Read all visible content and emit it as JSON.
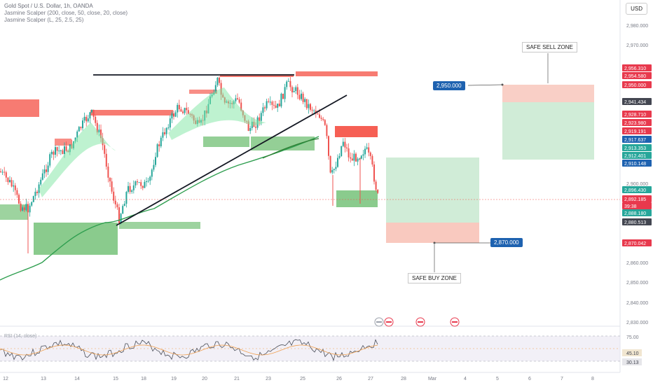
{
  "legend": {
    "title": "Gold Spot / U.S. Dollar, 1h, OANDA",
    "ind1": "Jasmine Scalper (200, close, 50, close, 20, close)",
    "ind2": "Jasmine Scalper (L, 25, 2.5, 25)"
  },
  "currency": "USD",
  "rsi_label": "RSI (14, close)",
  "annotations": {
    "sell_zone": "SAFE SELL ZONE",
    "buy_zone": "SAFE BUY ZONE",
    "sell_price": "2,950.000",
    "buy_price": "2,870.000"
  },
  "colors": {
    "up": "#26a69a",
    "down": "#ef5350",
    "demand": "#4caf50",
    "supply": "#f44336",
    "sma": "#2e9e4f",
    "trend": "#131722",
    "label_blue": "#1e62b0"
  },
  "chart_data": {
    "type": "candlestick",
    "title": "Gold Spot / U.S. Dollar, 1h, OANDA",
    "xlabel": "",
    "ylabel": "",
    "ylim": [
      2830,
      2990
    ],
    "y_ticks": [
      "2,980.000",
      "2,970.000",
      "2,900.000",
      "2,860.000",
      "2,850.000",
      "2,840.000",
      "2,830.000"
    ],
    "x_ticks": [
      "12",
      "13",
      "14",
      "15",
      "18",
      "19",
      "20",
      "21",
      "23",
      "25",
      "26",
      "27",
      "28",
      "Mar",
      "4",
      "5",
      "6",
      "7",
      "8"
    ],
    "price_labels": [
      {
        "text": "2,956.310",
        "color": "#e8394d"
      },
      {
        "text": "2,954.580",
        "color": "#e8394d"
      },
      {
        "text": "2,950.000",
        "color": "#e8394d"
      },
      {
        "text": "2,941.434",
        "color": "#434651"
      },
      {
        "text": "2,928.710",
        "color": "#e8394d"
      },
      {
        "text": "2,923.980",
        "color": "#e8394d"
      },
      {
        "text": "2,919.191",
        "color": "#e8394d"
      },
      {
        "text": "2,917.637",
        "color": "#1e62b0"
      },
      {
        "text": "2,913.353",
        "color": "#26a69a"
      },
      {
        "text": "2,912.401",
        "color": "#26a69a"
      },
      {
        "text": "2,910.148",
        "color": "#1e62b0"
      },
      {
        "text": "2,896.430",
        "color": "#26a69a"
      },
      {
        "text": "2,892.185",
        "color": "#e8394d"
      },
      {
        "text": "39:38",
        "color": "#e8394d"
      },
      {
        "text": "2,888.180",
        "color": "#26a69a"
      },
      {
        "text": "2,880.513",
        "color": "#434651"
      },
      {
        "text": "2,870.042",
        "color": "#e8394d"
      }
    ],
    "last_price": 2892.185,
    "rsi": {
      "name": "RSI (14, close)",
      "levels": [
        70,
        30
      ],
      "current": 45.1,
      "smoothed": 30.13,
      "tick_labels": [
        "75.00",
        "45.10",
        "30.13"
      ]
    }
  }
}
